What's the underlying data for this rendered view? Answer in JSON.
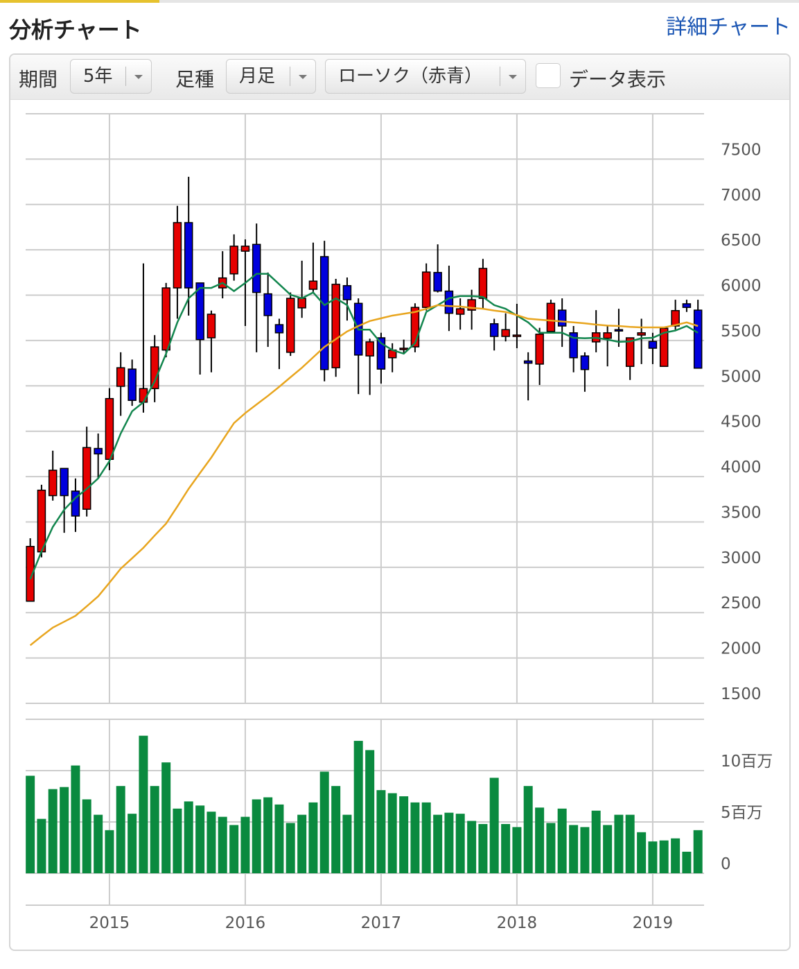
{
  "header": {
    "title": "分析チャート",
    "link": "詳細チャート"
  },
  "controls": {
    "period_label": "期間",
    "period": "5年",
    "kind_label": "足種",
    "kind": "月足",
    "style": "ローソク（赤青）",
    "data_toggle": "データ表示"
  },
  "chart_data": [
    {
      "type": "candlestick",
      "x": [
        2014.417,
        2014.5,
        2014.583,
        2014.667,
        2014.75,
        2014.833,
        2014.917,
        2015,
        2015.083,
        2015.167,
        2015.25,
        2015.333,
        2015.417,
        2015.5,
        2015.583,
        2015.667,
        2015.75,
        2015.833,
        2015.917,
        2016,
        2016.083,
        2016.167,
        2016.25,
        2016.333,
        2016.417,
        2016.5,
        2016.583,
        2016.667,
        2016.75,
        2016.833,
        2016.917,
        2017,
        2017.083,
        2017.167,
        2017.25,
        2017.333,
        2017.417,
        2017.5,
        2017.583,
        2017.667,
        2017.75,
        2017.833,
        2017.917,
        2018,
        2018.083,
        2018.167,
        2018.25,
        2018.333,
        2018.417,
        2018.5,
        2018.583,
        2018.667,
        2018.75,
        2018.833,
        2018.917,
        2019,
        2019.083,
        2019.167,
        2019.25,
        2019.333
      ],
      "open": [
        2626,
        3170,
        3790,
        4090,
        3840,
        3640,
        4310,
        4190,
        4995,
        5185,
        4820,
        4970,
        5395,
        6080,
        6800,
        6135,
        5530,
        6080,
        6235,
        6485,
        6560,
        6015,
        5675,
        5370,
        5860,
        6065,
        6425,
        5200,
        6105,
        5910,
        5330,
        5530,
        5310,
        5400,
        5430,
        5865,
        6250,
        6045,
        5790,
        5835,
        5965,
        5685,
        5545,
        5550,
        5275,
        5240,
        5600,
        5835,
        5585,
        5330,
        5485,
        5525,
        5620,
        5215,
        5560,
        5490,
        5215,
        5660,
        5905,
        5835
      ],
      "high": [
        3320,
        3910,
        4285,
        4090,
        3980,
        4550,
        4475,
        4975,
        5370,
        5290,
        6350,
        5560,
        6135,
        6985,
        7305,
        6135,
        5830,
        6485,
        6670,
        6615,
        6790,
        6250,
        5740,
        6030,
        6380,
        6580,
        6600,
        6180,
        6195,
        5965,
        5520,
        5585,
        5470,
        5510,
        5910,
        6350,
        6560,
        6325,
        5965,
        6060,
        6400,
        5740,
        5800,
        5905,
        5370,
        5640,
        5950,
        5965,
        5660,
        5370,
        5835,
        5660,
        5850,
        5530,
        5740,
        5585,
        5635,
        5950,
        5950,
        5950
      ],
      "low": [
        2620,
        3110,
        3735,
        3380,
        3390,
        3560,
        3980,
        4070,
        4670,
        4780,
        4705,
        4820,
        5315,
        5740,
        5775,
        5125,
        5150,
        5965,
        6160,
        5660,
        5370,
        5430,
        5185,
        5330,
        5750,
        6020,
        5050,
        5100,
        5720,
        4910,
        4900,
        5025,
        5150,
        5355,
        5370,
        5830,
        6030,
        5605,
        5620,
        5620,
        5850,
        5390,
        5490,
        5415,
        4840,
        5010,
        5580,
        5430,
        5150,
        4935,
        5370,
        5215,
        5430,
        5065,
        5240,
        5240,
        5215,
        5620,
        5815,
        5195
      ],
      "close": [
        3230,
        3850,
        4070,
        3790,
        3565,
        4320,
        4250,
        4860,
        5200,
        4840,
        4970,
        5430,
        6080,
        6800,
        6080,
        5510,
        5790,
        6190,
        6540,
        6540,
        6030,
        5775,
        5585,
        5965,
        5965,
        6155,
        5180,
        6120,
        5950,
        5340,
        5485,
        5185,
        5395,
        5415,
        5865,
        6255,
        6045,
        5800,
        5850,
        5950,
        6295,
        5545,
        5620,
        5560,
        5250,
        5570,
        5910,
        5660,
        5310,
        5180,
        5585,
        5585,
        5605,
        5530,
        5585,
        5415,
        5635,
        5830,
        5865,
        5195
      ],
      "up_color": "#e60000",
      "down_color": "#0000dd",
      "lines": [
        {
          "color": "#12864e",
          "values": [
            2870,
            3175,
            3445,
            3635,
            3765,
            3865,
            3980,
            4170,
            4475,
            4720,
            4820,
            5050,
            5355,
            5700,
            5965,
            6080,
            6080,
            6135,
            6045,
            6135,
            6235,
            6235,
            6120,
            6005,
            5965,
            6030,
            5890,
            5965,
            5890,
            5620,
            5620,
            5470,
            5395,
            5355,
            5470,
            5815,
            5890,
            5965,
            5990,
            5990,
            5980,
            5890,
            5850,
            5775,
            5700,
            5585,
            5585,
            5585,
            5530,
            5525,
            5530,
            5510,
            5485,
            5490,
            5525,
            5530,
            5585,
            5610,
            5660,
            5585
          ]
        },
        {
          "color": "#e8a51e",
          "values": [
            2140,
            2240,
            2335,
            2400,
            2465,
            2570,
            2680,
            2830,
            2985,
            3100,
            3215,
            3350,
            3482,
            3670,
            3865,
            4040,
            4210,
            4400,
            4590,
            4700,
            4795,
            4890,
            4990,
            5095,
            5200,
            5315,
            5430,
            5515,
            5600,
            5660,
            5715,
            5745,
            5775,
            5795,
            5815,
            5850,
            5890,
            5880,
            5875,
            5860,
            5850,
            5830,
            5815,
            5780,
            5740,
            5730,
            5720,
            5710,
            5700,
            5690,
            5675,
            5665,
            5660,
            5650,
            5645,
            5645,
            5645,
            5670,
            5700,
            5660
          ]
        }
      ],
      "xlim": [
        2014.383,
        2019.378
      ],
      "xticks": [
        2015,
        2016,
        2017,
        2018,
        2019
      ],
      "ylim": [
        1500,
        8000
      ],
      "yticks": [
        1500,
        2000,
        2500,
        3000,
        3500,
        4000,
        4500,
        5000,
        5500,
        6000,
        6500,
        7000,
        7500
      ],
      "grid": true
    },
    {
      "type": "bar",
      "color": "#0a8a3f",
      "x": [
        2014.417,
        2014.5,
        2014.583,
        2014.667,
        2014.75,
        2014.833,
        2014.917,
        2015,
        2015.083,
        2015.167,
        2015.25,
        2015.333,
        2015.417,
        2015.5,
        2015.583,
        2015.667,
        2015.75,
        2015.833,
        2015.917,
        2016,
        2016.083,
        2016.167,
        2016.25,
        2016.333,
        2016.417,
        2016.5,
        2016.583,
        2016.667,
        2016.75,
        2016.833,
        2016.917,
        2017,
        2017.083,
        2017.167,
        2017.25,
        2017.333,
        2017.417,
        2017.5,
        2017.583,
        2017.667,
        2017.75,
        2017.833,
        2017.917,
        2018,
        2018.083,
        2018.167,
        2018.25,
        2018.333,
        2018.417,
        2018.5,
        2018.583,
        2018.667,
        2018.75,
        2018.833,
        2018.917,
        2019,
        2019.083,
        2019.167,
        2019.25,
        2019.333
      ],
      "values": [
        9.5,
        5.3,
        8.2,
        8.4,
        10.5,
        7.2,
        5.7,
        4.2,
        8.5,
        5.8,
        13.4,
        8.5,
        10.8,
        6.3,
        7.0,
        6.6,
        6.0,
        5.5,
        4.7,
        5.5,
        7.2,
        7.4,
        6.7,
        4.9,
        5.7,
        6.9,
        9.9,
        8.5,
        5.7,
        12.9,
        12.0,
        8.1,
        7.8,
        7.5,
        6.9,
        6.9,
        5.7,
        5.9,
        5.8,
        5.1,
        4.8,
        9.3,
        4.8,
        4.5,
        8.5,
        6.4,
        4.9,
        6.3,
        4.7,
        4.5,
        6.1,
        4.7,
        5.7,
        5.7,
        4.0,
        3.1,
        3.2,
        3.4,
        2.1,
        4.2
      ],
      "xlim": [
        2014.383,
        2019.378
      ],
      "ylim": [
        0,
        15
      ],
      "yticks": [
        0,
        {
          "value": 5,
          "label": "5百万"
        },
        {
          "value": 10,
          "label": "10百万"
        }
      ],
      "grid": true
    }
  ]
}
